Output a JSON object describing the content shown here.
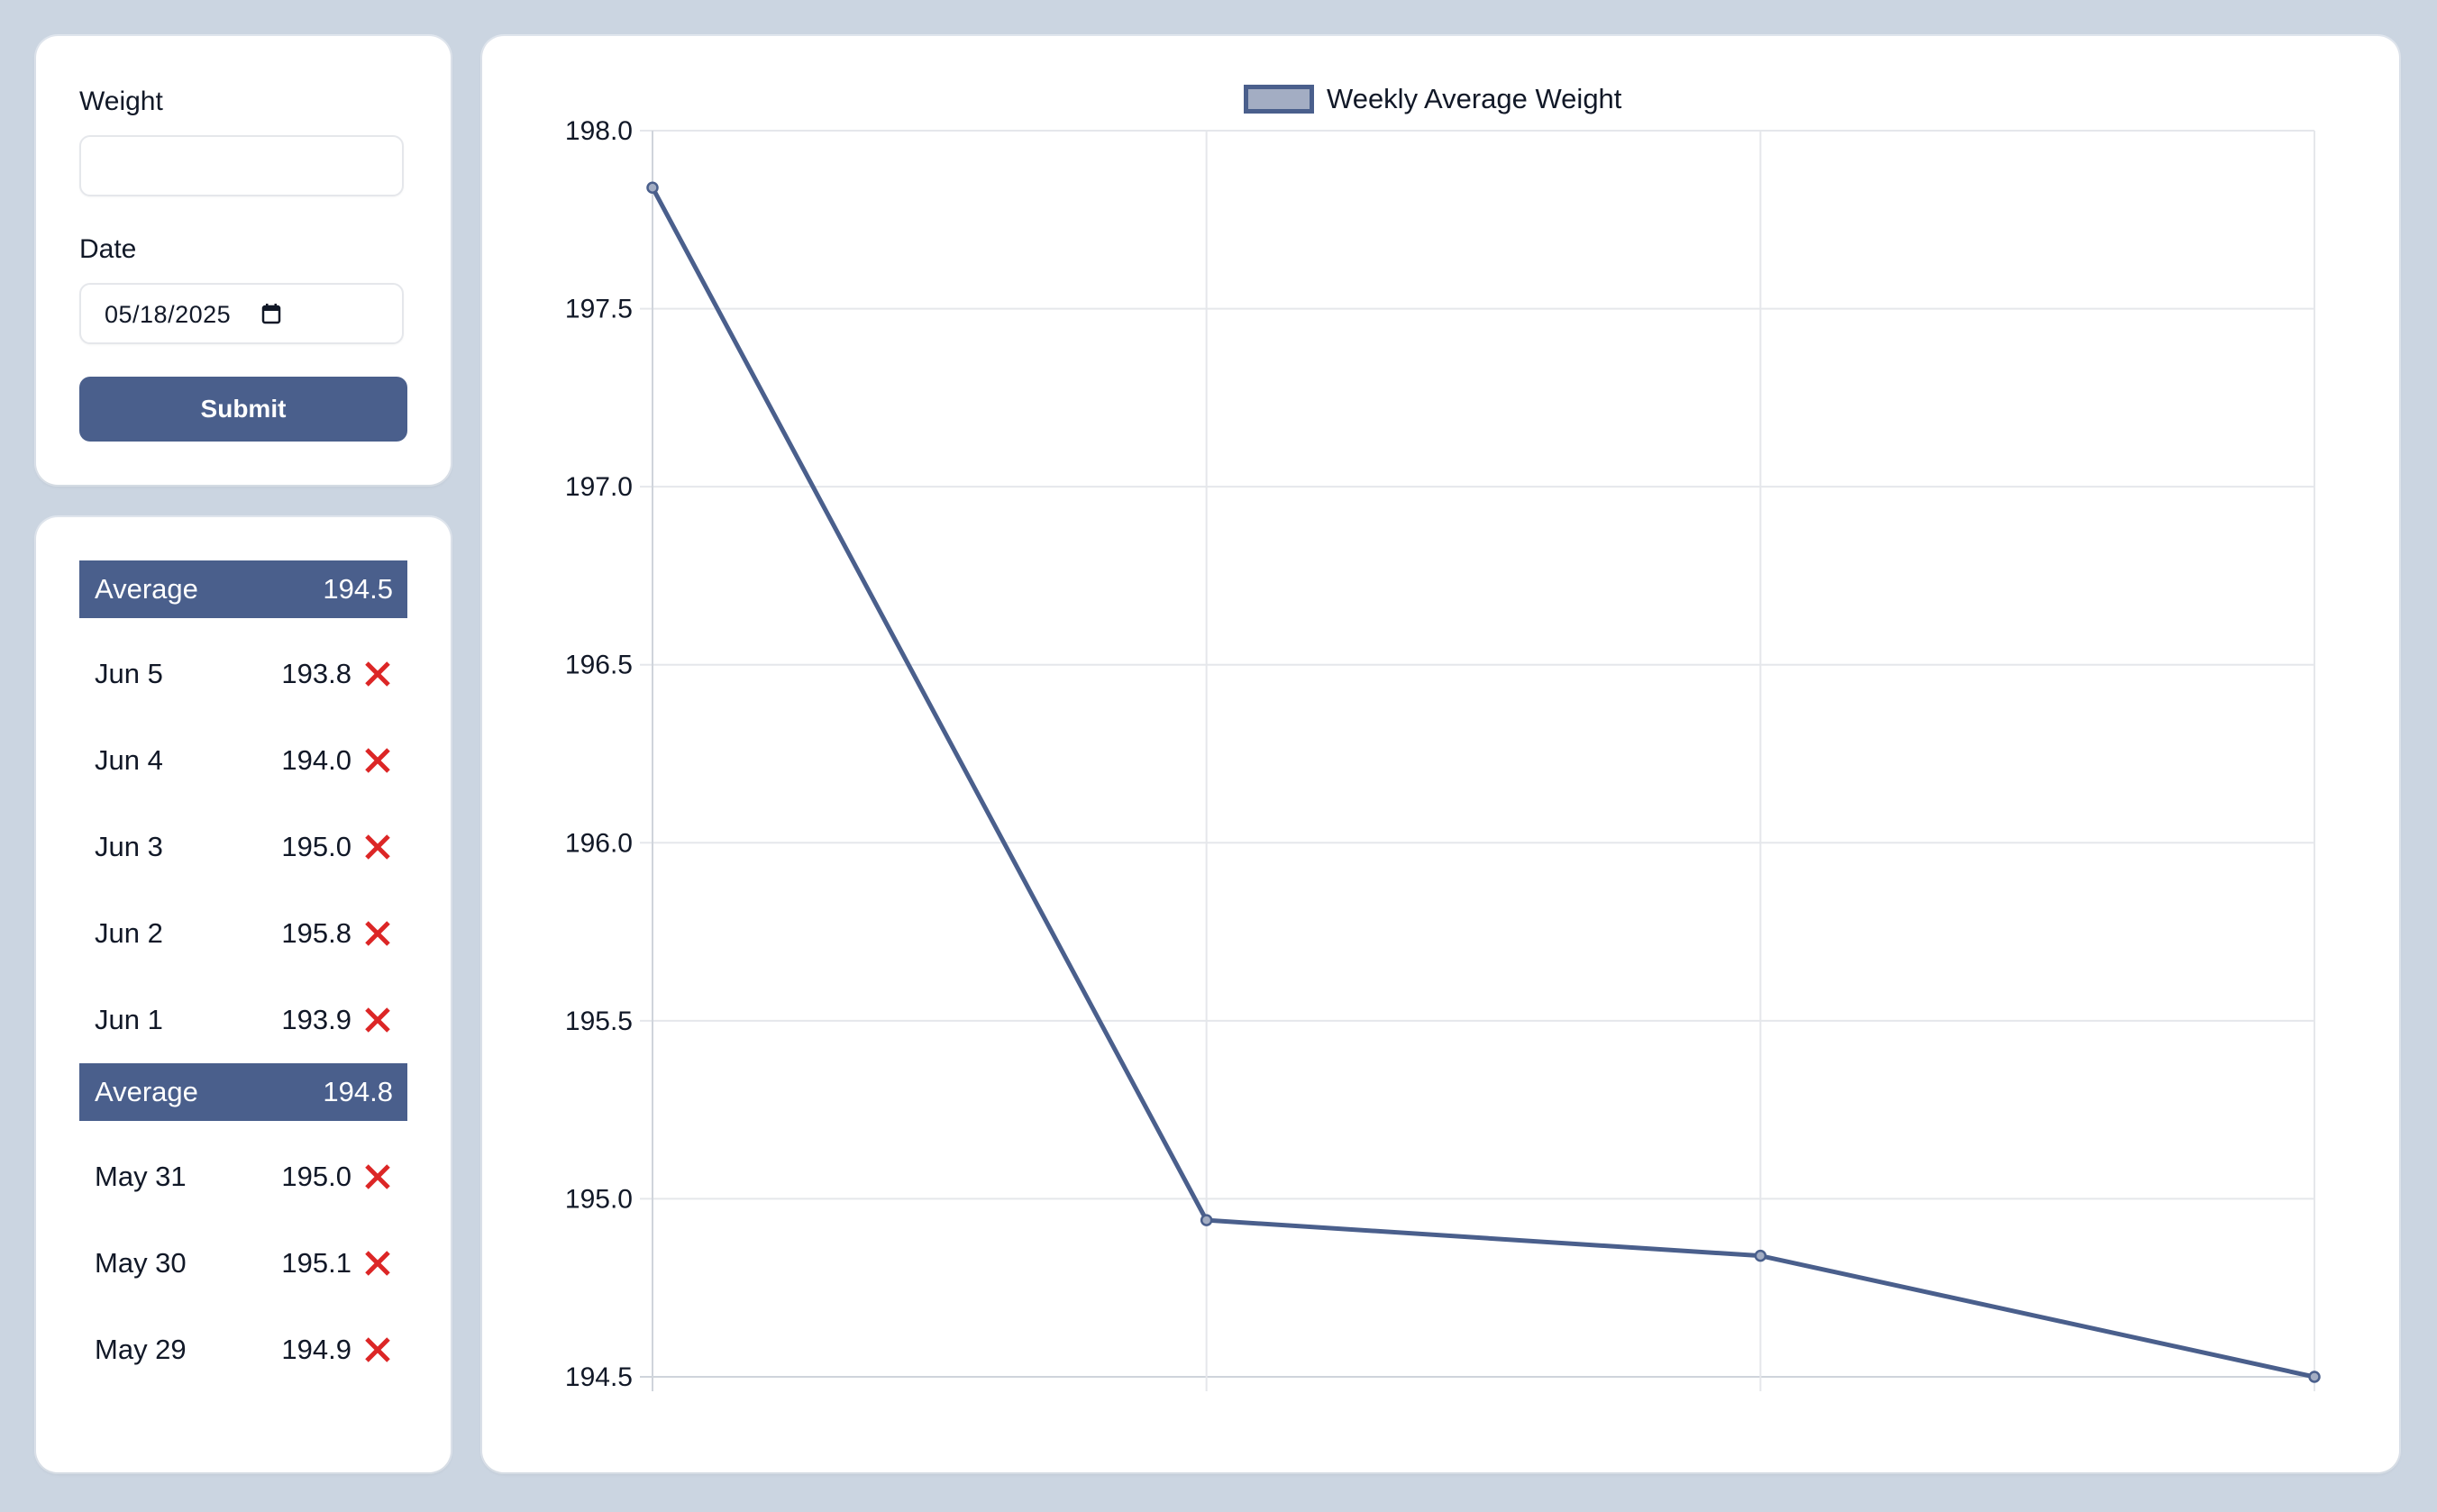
{
  "form": {
    "weight_label": "Weight",
    "weight_value": "",
    "date_label": "Date",
    "date_value": "05/18/2025",
    "submit_label": "Submit"
  },
  "list": {
    "groups": [
      {
        "average_label": "Average",
        "average_value": "194.5",
        "entries": [
          {
            "date": "Jun 5",
            "weight": "193.8"
          },
          {
            "date": "Jun 4",
            "weight": "194.0"
          },
          {
            "date": "Jun 3",
            "weight": "195.0"
          },
          {
            "date": "Jun 2",
            "weight": "195.8"
          },
          {
            "date": "Jun 1",
            "weight": "193.9"
          }
        ]
      },
      {
        "average_label": "Average",
        "average_value": "194.8",
        "entries": [
          {
            "date": "May 31",
            "weight": "195.0"
          },
          {
            "date": "May 30",
            "weight": "195.1"
          },
          {
            "date": "May 29",
            "weight": "194.9"
          }
        ]
      }
    ],
    "delete_icon": "close-x-icon"
  },
  "colors": {
    "accent": "#4a5f8c",
    "delete": "#dc2626",
    "background": "#cbd5e1",
    "legend_fill": "#a3adc3",
    "grid": "#e5e7eb"
  },
  "chart_data": {
    "type": "line",
    "title": "",
    "legend": [
      "Weekly Average Weight"
    ],
    "legend_position": "top",
    "x": [
      "",
      "",
      "",
      ""
    ],
    "series": [
      {
        "name": "Weekly Average Weight",
        "values": [
          197.84,
          194.94,
          194.84,
          194.5
        ]
      }
    ],
    "xlabel": "",
    "ylabel": "",
    "ylim": [
      194.5,
      198.0
    ],
    "yticks": [
      "198.0",
      "197.5",
      "197.0",
      "196.5",
      "196.0",
      "195.5",
      "195.0",
      "194.5"
    ],
    "grid": true
  }
}
